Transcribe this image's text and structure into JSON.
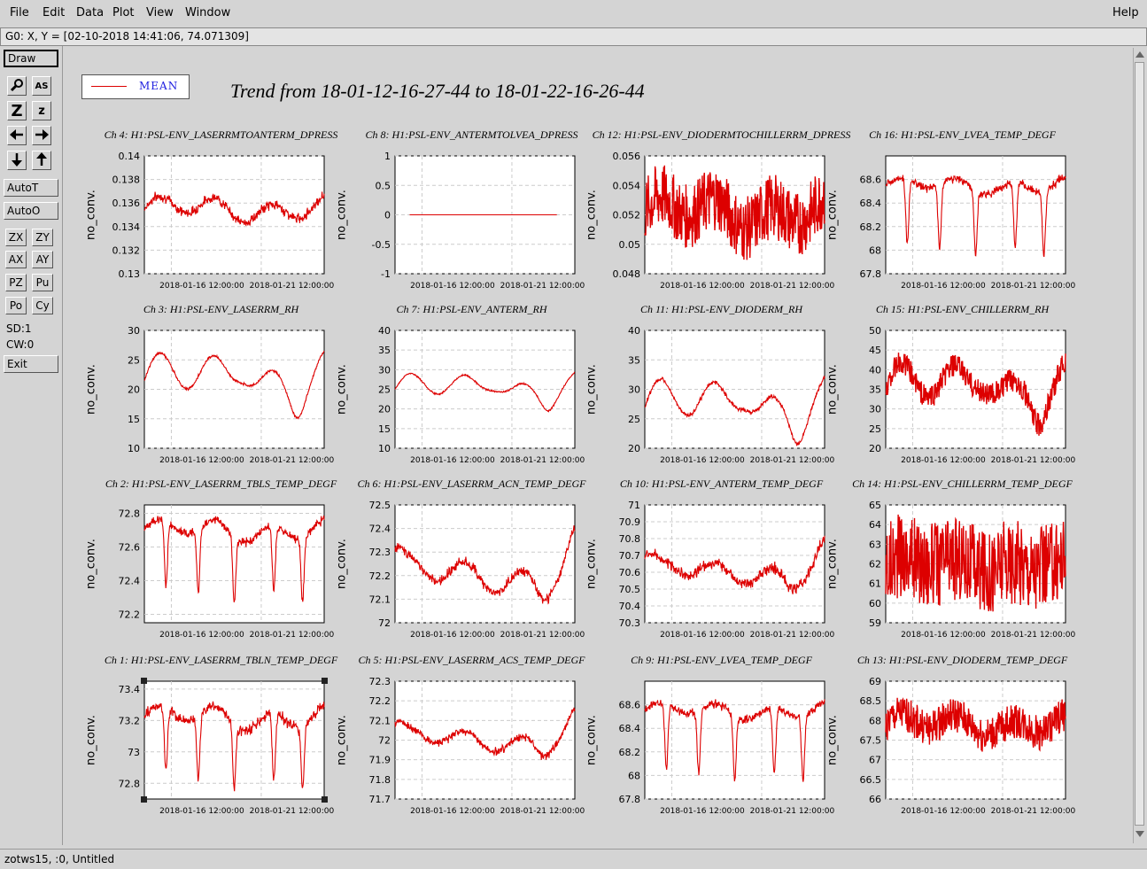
{
  "menu": {
    "items": [
      "File",
      "Edit",
      "Data",
      "Plot",
      "View",
      "Window"
    ],
    "help": "Help"
  },
  "coord_readout": "G0: X, Y = [02-10-2018 14:41:06, 74.071309]",
  "toolbar": {
    "draw": "Draw",
    "icons": [
      "magnify-icon",
      "text-size-icon",
      "zoom-big-icon",
      "zoom-small-icon",
      "arrow-left-icon",
      "arrow-right-icon",
      "arrow-down-icon",
      "arrow-up-icon"
    ],
    "zoom_big": "Z",
    "zoom_small": "z",
    "text_size": "AS",
    "autot": "AutoT",
    "autoo": "AutoO",
    "pairs": [
      [
        "ZX",
        "ZY"
      ],
      [
        "AX",
        "AY"
      ],
      [
        "PZ",
        "Pu"
      ],
      [
        "Po",
        "Cy"
      ]
    ],
    "sd": "SD:1",
    "cw": "CW:0",
    "exit": "Exit"
  },
  "status": "zotws15, :0, Untitled",
  "legend": {
    "label": "MEAN",
    "color": "#dd0000"
  },
  "title": "Trend from 18-01-12-16-27-44 to 18-01-22-16-26-44",
  "xticks": [
    "2018-01-16 12:00:00",
    "2018-01-21 12:00:00"
  ],
  "ylabel": "no_conv.",
  "chart_data": [
    {
      "type": "line",
      "title": "Ch 4: H1:PSL-ENV_LASERRMTOANTERM_DPRESS",
      "ylim": [
        0.13,
        0.14
      ],
      "yticks": [
        "0.14",
        "0.138",
        "0.136",
        "0.134",
        "0.132",
        "0.13"
      ],
      "base": 0.1355,
      "amp": 0.0008,
      "noise": 0.0006,
      "shape": "wave"
    },
    {
      "type": "line",
      "title": "Ch 8: H1:PSL-ENV_ANTERMTOLVEA_DPRESS",
      "ylim": [
        -1,
        1
      ],
      "yticks": [
        "1",
        "0.5",
        "0",
        "-0.5",
        "-1"
      ],
      "base": 0,
      "amp": 0,
      "noise": 0,
      "shape": "flat"
    },
    {
      "type": "line",
      "title": "Ch 12: H1:PSL-ENV_DIODERMTOCHILLERRM_DPRESS",
      "ylim": [
        0.048,
        0.056
      ],
      "yticks": [
        "0.056",
        "0.054",
        "0.052",
        "0.05",
        "0.048"
      ],
      "base": 0.0522,
      "amp": 0.0008,
      "noise": 0.0022,
      "shape": "band"
    },
    {
      "type": "line",
      "title": "Ch 16: H1:PSL-ENV_LVEA_TEMP_DEGF",
      "ylim": [
        67.8,
        68.8
      ],
      "yticks": [
        "68.6",
        "68.4",
        "68.2",
        "68",
        "67.8"
      ],
      "base": 68.55,
      "amp": 0.05,
      "noise": 0.05,
      "shape": "dips"
    },
    {
      "type": "line",
      "title": "Ch 3: H1:PSL-ENV_LASERRM_RH",
      "ylim": [
        10,
        30
      ],
      "yticks": [
        "30",
        "25",
        "20",
        "15",
        "10"
      ],
      "base": 21.5,
      "amp": 3.5,
      "noise": 0.3,
      "shape": "rh"
    },
    {
      "type": "line",
      "title": "Ch 7: H1:PSL-ENV_ANTERM_RH",
      "ylim": [
        10,
        40
      ],
      "yticks": [
        "40",
        "35",
        "30",
        "25",
        "20",
        "15",
        "10"
      ],
      "base": 25,
      "amp": 3,
      "noise": 0.3,
      "shape": "rh"
    },
    {
      "type": "line",
      "title": "Ch 11: H1:PSL-ENV_DIODERM_RH",
      "ylim": [
        20,
        40
      ],
      "yticks": [
        "40",
        "35",
        "30",
        "25",
        "20"
      ],
      "base": 27,
      "amp": 3.5,
      "noise": 0.5,
      "shape": "rh"
    },
    {
      "type": "line",
      "title": "Ch 15: H1:PSL-ENV_CHILLERRM_RH",
      "ylim": [
        20,
        50
      ],
      "yticks": [
        "50",
        "45",
        "40",
        "35",
        "30",
        "25",
        "20"
      ],
      "base": 35,
      "amp": 5,
      "noise": 3,
      "shape": "rhband"
    },
    {
      "type": "line",
      "title": "Ch 2: H1:PSL-ENV_LASERRM_TBLS_TEMP_DEGF",
      "ylim": [
        72.15,
        72.85
      ],
      "yticks": [
        "72.8",
        "72.6",
        "72.4",
        "72.2"
      ],
      "base": 72.7,
      "amp": 0.05,
      "noise": 0.04,
      "shape": "dips"
    },
    {
      "type": "line",
      "title": "Ch 6: H1:PSL-ENV_LASERRM_ACN_TEMP_DEGF",
      "ylim": [
        72,
        72.5
      ],
      "yticks": [
        "72.5",
        "72.4",
        "72.3",
        "72.2",
        "72.1",
        "72"
      ],
      "base": 72.2,
      "amp": 0.05,
      "noise": 0.03,
      "shape": "vtemp"
    },
    {
      "type": "line",
      "title": "Ch 10: H1:PSL-ENV_ANTERM_TEMP_DEGF",
      "ylim": [
        70.3,
        71
      ],
      "yticks": [
        "71",
        "70.9",
        "70.8",
        "70.7",
        "70.6",
        "70.5",
        "70.4",
        "70.3"
      ],
      "base": 70.6,
      "amp": 0.05,
      "noise": 0.05,
      "shape": "vtemp"
    },
    {
      "type": "line",
      "title": "Ch 14: H1:PSL-ENV_CHILLERRM_TEMP_DEGF",
      "ylim": [
        59,
        65
      ],
      "yticks": [
        "65",
        "64",
        "63",
        "62",
        "61",
        "60",
        "59"
      ],
      "base": 62,
      "amp": 0.3,
      "noise": 2.2,
      "shape": "band"
    },
    {
      "type": "line",
      "title": "Ch 1: H1:PSL-ENV_LASERRM_TBLN_TEMP_DEGF",
      "ylim": [
        72.7,
        73.45
      ],
      "yticks": [
        "73.4",
        "73.2",
        "73",
        "72.8"
      ],
      "base": 73.22,
      "amp": 0.06,
      "noise": 0.05,
      "shape": "dips"
    },
    {
      "type": "line",
      "title": "Ch 5: H1:PSL-ENV_LASERRM_ACS_TEMP_DEGF",
      "ylim": [
        71.7,
        72.3
      ],
      "yticks": [
        "72.3",
        "72.2",
        "72.1",
        "72",
        "71.9",
        "71.8",
        "71.7"
      ],
      "base": 72,
      "amp": 0.04,
      "noise": 0.03,
      "shape": "vtemp"
    },
    {
      "type": "line",
      "title": "Ch 9: H1:PSL-ENV_LVEA_TEMP_DEGF",
      "ylim": [
        67.8,
        68.8
      ],
      "yticks": [
        "68.6",
        "68.4",
        "68.2",
        "68",
        "67.8"
      ],
      "base": 68.55,
      "amp": 0.05,
      "noise": 0.05,
      "shape": "dips"
    },
    {
      "type": "line",
      "title": "Ch 13: H1:PSL-ENV_DIODERM_TEMP_DEGF",
      "ylim": [
        66,
        69
      ],
      "yticks": [
        "69",
        "68.5",
        "68",
        "67.5",
        "67",
        "66.5",
        "66"
      ],
      "base": 67.9,
      "amp": 0.2,
      "noise": 0.45,
      "shape": "band"
    }
  ]
}
